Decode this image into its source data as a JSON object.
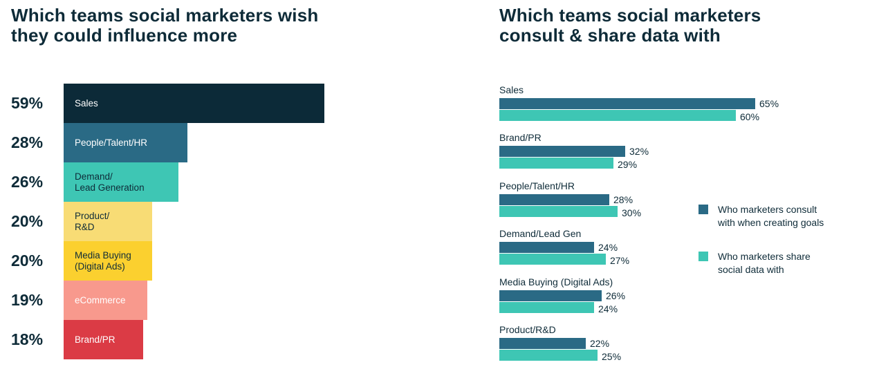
{
  "colors": {
    "title": "#0e2b38",
    "consult": "#2a6a85",
    "share": "#3ec6b4"
  },
  "left": {
    "title": "Which teams social marketers wish they could influence more"
  },
  "right": {
    "title": "Which teams social marketers consult & share data with",
    "legend": [
      {
        "label": "Who marketers consult with when creating goals",
        "color": "#2a6a85"
      },
      {
        "label": "Who marketers share social data with",
        "color": "#3ec6b4"
      }
    ]
  },
  "chart_data": [
    {
      "type": "bar",
      "orientation": "horizontal",
      "title": "Which teams social marketers wish they could influence more",
      "categories": [
        "Sales",
        "People/Talent/HR",
        "Demand/\nLead Generation",
        "Product/\nR&D",
        "Media Buying\n(Digital Ads)",
        "eCommerce",
        "Brand/PR"
      ],
      "values": [
        59,
        28,
        26,
        20,
        20,
        19,
        18
      ],
      "value_labels": [
        "59%",
        "28%",
        "26%",
        "20%",
        "20%",
        "19%",
        "18%"
      ],
      "bar_colors": [
        "#0c2a38",
        "#2a6a85",
        "#3ec6b4",
        "#f8dc75",
        "#fbd02f",
        "#f8998d",
        "#db3b45"
      ],
      "label_colors": [
        "#ffffff",
        "#ffffff",
        "#0e2b38",
        "#0e2b38",
        "#0e2b38",
        "#ffffff",
        "#ffffff"
      ]
    },
    {
      "type": "bar",
      "orientation": "horizontal",
      "title": "Which teams social marketers consult & share data with",
      "categories": [
        "Sales",
        "Brand/PR",
        "People/Talent/HR",
        "Demand/Lead Gen",
        "Media Buying (Digital Ads)",
        "Product/R&D"
      ],
      "series": [
        {
          "name": "Who marketers consult with when creating goals",
          "color": "#2a6a85",
          "values": [
            65,
            32,
            28,
            24,
            26,
            22
          ],
          "value_labels": [
            "65%",
            "32%",
            "28%",
            "24%",
            "26%",
            "22%"
          ]
        },
        {
          "name": "Who marketers share social data with",
          "color": "#3ec6b4",
          "values": [
            60,
            29,
            30,
            27,
            24,
            25
          ],
          "value_labels": [
            "60%",
            "29%",
            "30%",
            "27%",
            "24%",
            "25%"
          ]
        }
      ],
      "legend": "right"
    }
  ]
}
